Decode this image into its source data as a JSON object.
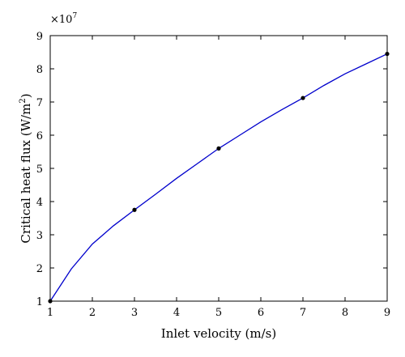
{
  "chart_data": {
    "type": "line",
    "title": "",
    "xlabel": "Inlet velocity (m/s)",
    "ylabel_main": "Critical heat flux (W/m",
    "ylabel_sup": "2",
    "ylabel_close": ")",
    "xlim": [
      1,
      9
    ],
    "ylim": [
      1,
      9
    ],
    "x_ticks": [
      1,
      2,
      3,
      4,
      5,
      6,
      7,
      8,
      9
    ],
    "y_ticks": [
      1,
      2,
      3,
      4,
      5,
      6,
      7,
      8,
      9
    ],
    "y_scale_label": "×10",
    "y_scale_exponent": "7",
    "grid": false,
    "series": [
      {
        "color": "#0000cc",
        "x": [
          1.0,
          1.5,
          2.0,
          2.5,
          3.0,
          3.5,
          4.0,
          4.5,
          5.0,
          5.5,
          6.0,
          6.5,
          7.0,
          7.5,
          8.0,
          8.5,
          9.0
        ],
        "y": [
          1.0,
          1.97,
          2.72,
          3.27,
          3.75,
          4.22,
          4.7,
          5.15,
          5.6,
          6.0,
          6.4,
          6.77,
          7.12,
          7.5,
          7.85,
          8.15,
          8.45
        ]
      }
    ],
    "markers": {
      "color": "#000000",
      "x": [
        1,
        3,
        5,
        7,
        9
      ],
      "y": [
        1.0,
        3.75,
        5.6,
        7.12,
        8.45
      ]
    }
  }
}
